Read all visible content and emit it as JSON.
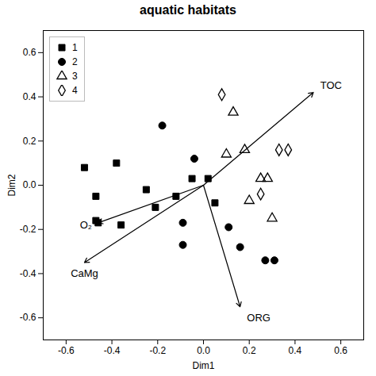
{
  "chart_data": {
    "type": "scatter",
    "title": "aquatic habitats",
    "xlabel": "Dim1",
    "ylabel": "Dim2",
    "xlim": [
      -0.7,
      0.7
    ],
    "ylim": [
      -0.7,
      0.7
    ],
    "xticks": [
      -0.6,
      -0.4,
      -0.2,
      {
        "value": 0.0,
        "label": "0.0"
      },
      0.2,
      0.4,
      0.6
    ],
    "yticks": [
      -0.6,
      -0.4,
      -0.2,
      {
        "value": 0.0,
        "label": "0.0"
      },
      0.2,
      0.4,
      0.6
    ],
    "grid": false,
    "legend": "upper left",
    "series": [
      {
        "name": "1",
        "color": "black",
        "marker": "square",
        "x": [
          -0.52,
          -0.47,
          -0.47,
          -0.46,
          -0.38,
          -0.36,
          -0.25,
          -0.21,
          -0.12,
          -0.05,
          0.02,
          0.05
        ],
        "y": [
          0.08,
          -0.05,
          -0.16,
          -0.17,
          0.1,
          -0.18,
          -0.02,
          -0.1,
          -0.05,
          0.03,
          0.03,
          -0.08
        ]
      },
      {
        "name": "2",
        "color": "black",
        "marker": "circle",
        "x": [
          -0.18,
          -0.04,
          -0.09,
          -0.09,
          0.11,
          0.16,
          0.27,
          0.31
        ],
        "y": [
          0.27,
          0.12,
          -0.17,
          -0.27,
          -0.19,
          -0.28,
          -0.34,
          -0.34
        ]
      },
      {
        "name": "3",
        "color": "black",
        "marker": "open_triangle",
        "x": [
          0.1,
          0.13,
          0.18,
          0.2,
          0.25,
          0.28,
          0.3
        ],
        "y": [
          0.14,
          0.33,
          0.16,
          -0.07,
          0.03,
          0.03,
          -0.15
        ]
      },
      {
        "name": "4",
        "color": "black",
        "marker": "open_diamond",
        "x": [
          0.08,
          0.25,
          0.33,
          0.37
        ],
        "y": [
          0.41,
          -0.04,
          0.16,
          0.16
        ]
      }
    ],
    "annotations": [
      {
        "text": "O₂",
        "arrow_from": [
          0,
          0
        ],
        "arrow_to": [
          -0.46,
          -0.17
        ],
        "x": -0.54,
        "y": -0.18
      },
      {
        "text": "CaMg",
        "arrow_from": [
          0,
          0
        ],
        "arrow_to": [
          -0.52,
          -0.35
        ],
        "x": -0.58,
        "y": -0.4
      },
      {
        "text": "ORG",
        "arrow_from": [
          0,
          0
        ],
        "arrow_to": [
          0.16,
          -0.55
        ],
        "x": 0.19,
        "y": -0.6
      },
      {
        "text": "TOC",
        "arrow_from": [
          0,
          0
        ],
        "arrow_to": [
          0.48,
          0.42
        ],
        "x": 0.51,
        "y": 0.45
      }
    ]
  }
}
